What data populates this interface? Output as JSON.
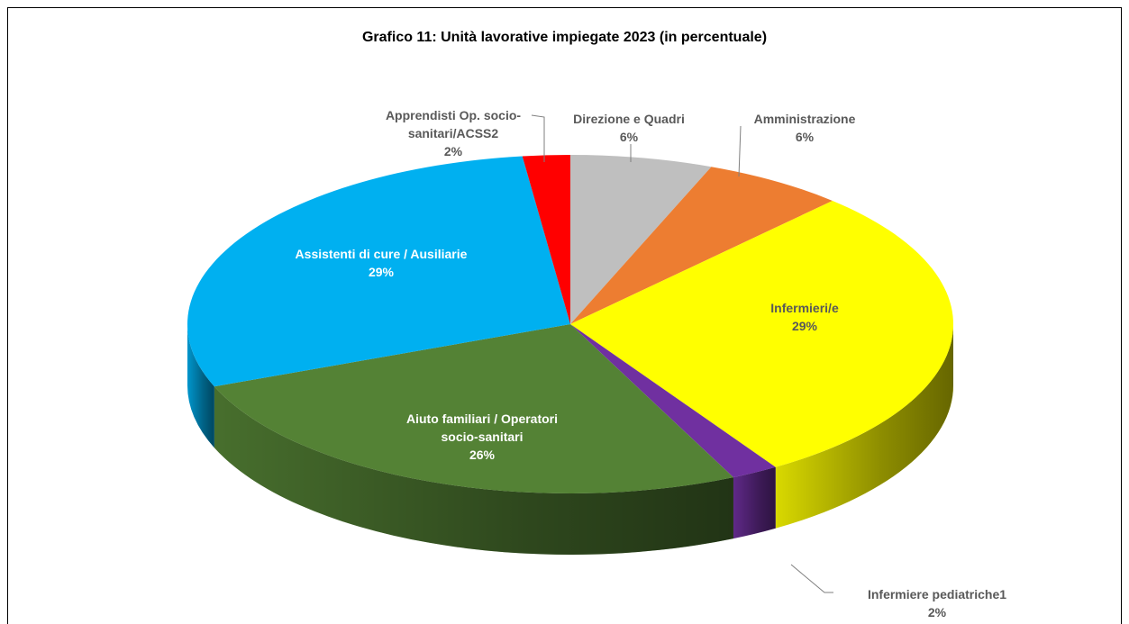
{
  "chart_data": {
    "type": "pie3d",
    "title": "Grafico 11: Unità lavorative impiegate 2023 (in percentuale)",
    "categories": [
      "Direzione e Quadri",
      "Amministrazione",
      "Infermieri/e",
      "Infermiere pediatriche1",
      "Aiuto familiari / Operatori socio-sanitari",
      "Assistenti di cure / Ausiliarie",
      "Apprendisti Op. socio-sanitari/ACSS2"
    ],
    "values": [
      6,
      6,
      29,
      2,
      26,
      29,
      2
    ],
    "value_labels": [
      "6%",
      "6%",
      "29%",
      "2%",
      "26%",
      "29%",
      "2%"
    ],
    "colors": [
      "#bfbfbf",
      "#ed7d31",
      "#ffff00",
      "#7030a0",
      "#548235",
      "#00b0f0",
      "#ff0000"
    ]
  }
}
